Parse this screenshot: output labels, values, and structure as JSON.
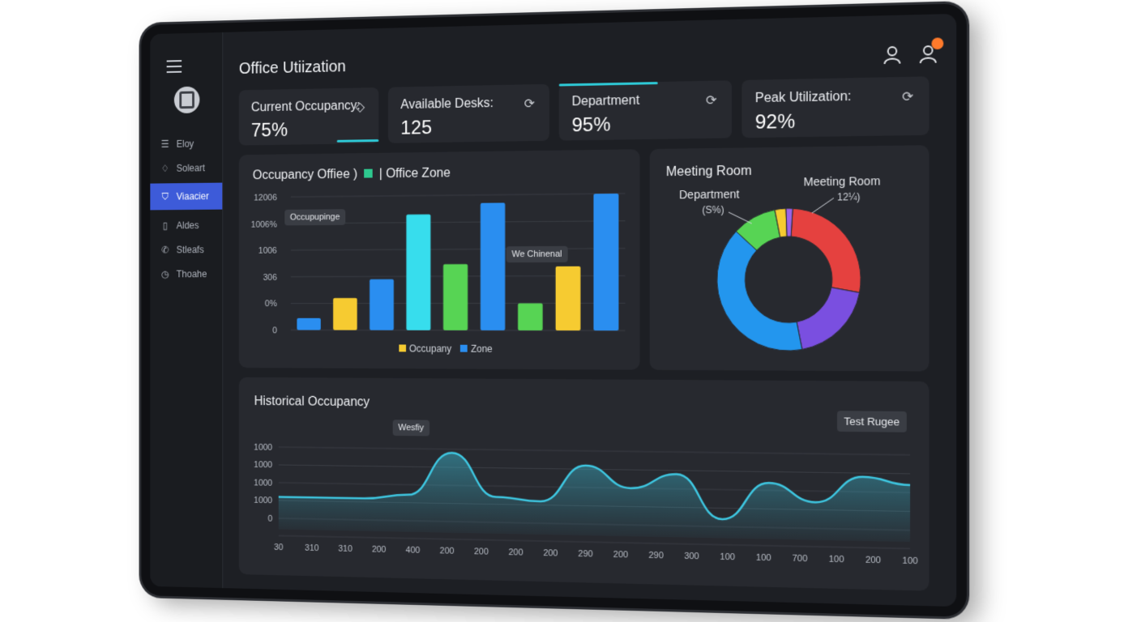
{
  "header": {
    "title": "Office Utiization"
  },
  "sidebar": {
    "items": [
      {
        "label": "Eloy",
        "icon": "list-icon"
      },
      {
        "label": "Soleart",
        "icon": "bell-icon"
      },
      {
        "label": "Viaacier",
        "icon": "shield-icon",
        "active": true
      },
      {
        "label": "Aldes",
        "icon": "doc-icon"
      },
      {
        "label": "Stleafs",
        "icon": "phone-icon"
      },
      {
        "label": "Thoahe",
        "icon": "clock-icon"
      }
    ]
  },
  "kpis": [
    {
      "label": "Current Occupancy:",
      "value": "75%",
      "icon": "◇"
    },
    {
      "label": "Available Desks:",
      "value": "125",
      "icon": "⟳"
    },
    {
      "label": "Department",
      "value": "95%",
      "icon": "⟳"
    },
    {
      "label": "Peak Utilization:",
      "value": "92%",
      "icon": "⟳"
    }
  ],
  "bar_panel": {
    "title": "Occupancy Offiee )",
    "title_zone": "| Office Zone",
    "tag_occupancy": "Occupupinge",
    "tag_weekend": "We Chinenal",
    "legend": [
      {
        "label": "Occupany",
        "color": "#f6cb31"
      },
      {
        "label": "Zone",
        "color": "#2a8ef0"
      }
    ]
  },
  "donut_panel": {
    "title": "Meeting Room",
    "label_department": "Department",
    "label_department_sub": "(S%)",
    "label_meeting": "Meeting Room",
    "label_meeting_sub": "12¼)"
  },
  "line_panel": {
    "title": "Historical Occupancy",
    "tag_weekly": "Wesfiy",
    "button_range": "Test Rugee"
  },
  "chart_data": [
    {
      "type": "bar",
      "title": "Occupancy Offiee ) | Office Zone",
      "y_tick_labels": [
        "12006",
        "1006%",
        "1006",
        "306",
        "0%",
        "0"
      ],
      "values_scale": "fraction of plot height",
      "bars": [
        {
          "color": "#2a8ef0",
          "value": 0.09
        },
        {
          "color": "#f6cb31",
          "value": 0.24
        },
        {
          "color": "#2a8ef0",
          "value": 0.38
        },
        {
          "color": "#37dded",
          "value": 0.86
        },
        {
          "color": "#57d454",
          "value": 0.49
        },
        {
          "color": "#2a8ef0",
          "value": 0.94
        },
        {
          "color": "#57d454",
          "value": 0.2
        },
        {
          "color": "#f6cb31",
          "value": 0.47
        },
        {
          "color": "#2a8ef0",
          "value": 1.0
        }
      ],
      "legend": [
        "Occupany",
        "Zone"
      ]
    },
    {
      "type": "pie",
      "title": "Meeting Room",
      "slices": [
        {
          "color": "#e5413f",
          "value": 27
        },
        {
          "color": "#7a4fe0",
          "value": 19
        },
        {
          "color": "#2396ee",
          "value": 40
        },
        {
          "color": "#57d454",
          "value": 10
        },
        {
          "color": "#f6cb31",
          "value": 2.5
        },
        {
          "color": "#9b63e8",
          "value": 1.5
        }
      ],
      "labels": [
        "Department (S%)",
        "Meeting Room 12¼)"
      ]
    },
    {
      "type": "area",
      "title": "Historical Occupancy",
      "y_tick_labels": [
        "1000",
        "1000",
        "1000",
        "1000",
        "0"
      ],
      "x_tick_labels": [
        "30",
        "310",
        "310",
        "200",
        "400",
        "200",
        "200",
        "200",
        "200",
        "290",
        "200",
        "290",
        "300",
        "100",
        "100",
        "700",
        "100",
        "200",
        "100"
      ],
      "values": [
        0.3,
        0.3,
        0.3,
        0.36,
        0.95,
        0.35,
        0.3,
        0.8,
        0.5,
        0.7,
        0.1,
        0.6,
        0.35,
        0.7,
        0.6
      ],
      "color": "#3ec6e0"
    }
  ]
}
